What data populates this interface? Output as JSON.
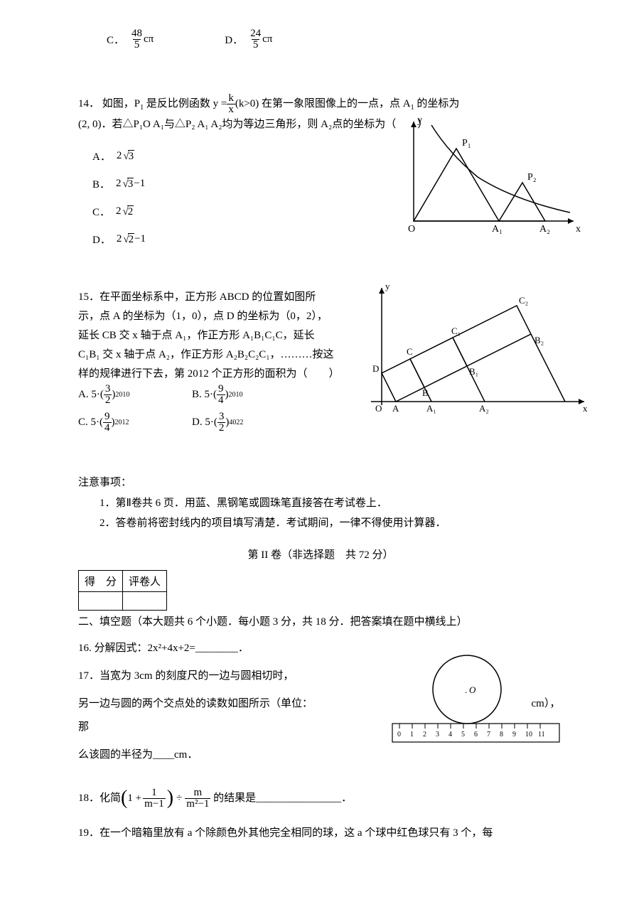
{
  "q_prev": {
    "optC_label": "C．",
    "optC_num": "48",
    "optC_den": "5",
    "optC_suffix": "cπ",
    "optD_label": "D．",
    "optD_num": "24",
    "optD_den": "5",
    "optD_suffix": "cπ"
  },
  "q14": {
    "num": "14．",
    "line1_a": "如图，P",
    "line1_sub1": "1",
    "line1_b": "是反比例函数",
    "line1_formula_num": "k",
    "line1_formula_den": "x",
    "line1_formula_pre": "y = ",
    "line1_formula_cond": "(k>0)",
    "line1_c": "在第一象限图像上的一点，点 A",
    "line1_sub2": "1",
    "line1_d": " 的坐标为",
    "line2": "(2, 0)．若△P₁O A₁与△P₂ A₁ A₂均为等边三角形，则 A₂点的坐标为（　　）",
    "optA_label": "A．",
    "optA_val": "2",
    "optA_sqrt": "3",
    "optB_label": "B．",
    "optB_val": "2",
    "optB_sqrt": "3",
    "optB_suffix": "−1",
    "optC_label": "C．",
    "optC_val": "2",
    "optC_sqrt": "2",
    "optD_label": "D．",
    "optD_val": "2",
    "optD_sqrt": "2",
    "optD_suffix": "−1",
    "graph": {
      "y_label": "y",
      "x_label": "x",
      "origin": "O",
      "p1": "P₁",
      "p2": "P₂",
      "a1": "A₁",
      "a2": "A₂"
    }
  },
  "q15": {
    "num": "15．",
    "body": "在平面坐标系中，正方形 ABCD 的位置如图所示，点 A 的坐标为（1，0），点 D 的坐标为（0，2），延长 CB 交 x 轴于点 A₁，作正方形 A₁B₁C₁C，延长 C₁B₁ 交 x 轴于点 A₂，作正方形 A₂B₂C₂C₁，………按这样的规律进行下去，第 2012 个正方形的面积为（　　）",
    "optA_label": "A.",
    "optA_base": "5·(",
    "optA_num": "3",
    "optA_den": "2",
    "optA_close": ")",
    "optA_exp": "2010",
    "optB_label": "B.",
    "optB_base": "5·(",
    "optB_num": "9",
    "optB_den": "4",
    "optB_close": ")",
    "optB_exp": "2010",
    "optC_label": "C.",
    "optC_base": "5·(",
    "optC_num": "9",
    "optC_den": "4",
    "optC_close": ")",
    "optC_exp": "2012",
    "optD_label": "D.",
    "optD_base": "5·(",
    "optD_num": "3",
    "optD_den": "2",
    "optD_close": ")",
    "optD_exp": "4022",
    "graph": {
      "y_label": "y",
      "x_label": "x",
      "origin": "O",
      "labels": [
        "D",
        "C",
        "B",
        "A",
        "A₁",
        "A₂",
        "C₁",
        "C₂",
        "B₁",
        "B₂"
      ]
    }
  },
  "notice": {
    "title": "注意事项：",
    "item1": "1．第Ⅱ卷共 6 页．用蓝、黑钢笔或圆珠笔直接答在考试卷上．",
    "item2": "2．答卷前将密封线内的项目填写清楚．考试期间，一律不得使用计算器．",
    "part2_header": "第 II 卷（非选择题　共 72 分）"
  },
  "score_table": {
    "h1": "得　分",
    "h2": "评卷人"
  },
  "section2_intro": "二、填空题（本大题共 6 个小题．每小题 3 分，共 18 分．把答案填在题中横线上）",
  "q16": "16. 分解因式：2x²+4x+2=________．",
  "q17": {
    "num": "17．",
    "line1": "当宽为 3cm 的刻度尺的一边与圆相切时，",
    "line2": "另一边与圆的两个交点处的读数如图所示（单位：",
    "line2_end": "cm），那",
    "line3": "么该圆的半径为____cm．",
    "circle_label": ".O",
    "ruler_marks": [
      "0",
      "1",
      "2",
      "3",
      "4",
      "5",
      "6",
      "7",
      "8",
      "9",
      "10",
      "11"
    ]
  },
  "q18": {
    "num": "18．",
    "text_a": "化简",
    "text_b": "的结果是________________．",
    "expr_1": "1 +",
    "frac1_num": "1",
    "frac1_den": "m−1",
    "div": "÷",
    "frac2_num": "m",
    "frac2_den": "m²−1"
  },
  "q19": "19．在一个暗箱里放有 a 个除颜色外其他完全相同的球，这 a 个球中红色球只有 3 个，每"
}
